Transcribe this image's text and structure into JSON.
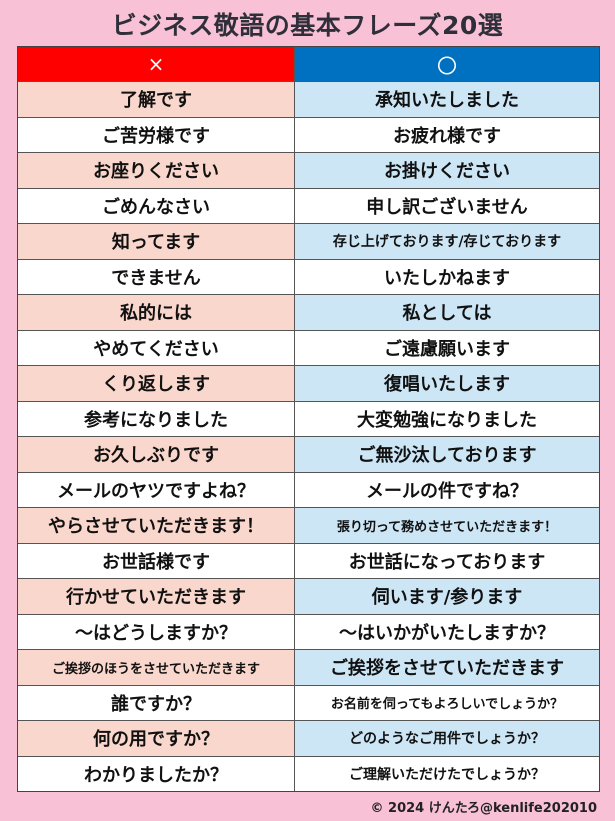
{
  "title": "ビジネス敬語の基本フレーズ20選",
  "header": {
    "wrong_label": "×",
    "right_label": "〇",
    "wrong_color": "#fe0000",
    "right_color": "#0070c0"
  },
  "rows": [
    {
      "wrong": "了解です",
      "right": "承知いたしました"
    },
    {
      "wrong": "ご苦労様です",
      "right": "お疲れ様です"
    },
    {
      "wrong": "お座りください",
      "right": "お掛けください"
    },
    {
      "wrong": "ごめんなさい",
      "right": "申し訳ございません"
    },
    {
      "wrong": "知ってます",
      "right": "存じ上げております/存じております"
    },
    {
      "wrong": "できません",
      "right": "いたしかねます"
    },
    {
      "wrong": "私的には",
      "right": "私としては"
    },
    {
      "wrong": "やめてください",
      "right": "ご遠慮願います"
    },
    {
      "wrong": "くり返します",
      "right": "復唱いたします"
    },
    {
      "wrong": "参考になりました",
      "right": "大変勉強になりました"
    },
    {
      "wrong": "お久しぶりです",
      "right": "ご無沙汰しております"
    },
    {
      "wrong": "メールのヤツですよね？",
      "right": "メールの件ですね？"
    },
    {
      "wrong": "やらさせていただきます！",
      "right": "張り切って務めさせていただきます！"
    },
    {
      "wrong": "お世話様です",
      "right": "お世話になっております"
    },
    {
      "wrong": "行かせていただきます",
      "right": "伺います/参ります"
    },
    {
      "wrong": "～はどうしますか？",
      "right": "～はいかがいたしますか？"
    },
    {
      "wrong": "ご挨拶のほうをさせていただきます",
      "right": "ご挨拶をさせていただきます"
    },
    {
      "wrong": "誰ですか？",
      "right": "お名前を伺ってもよろしいでしょうか？"
    },
    {
      "wrong": "何の用ですか？",
      "right": "どのようなご用件でしょうか？"
    },
    {
      "wrong": "わかりましたか？",
      "right": "ご理解いただけたでしょうか？"
    }
  ],
  "footer": "© 2024 けんたろ@kenlife202010"
}
